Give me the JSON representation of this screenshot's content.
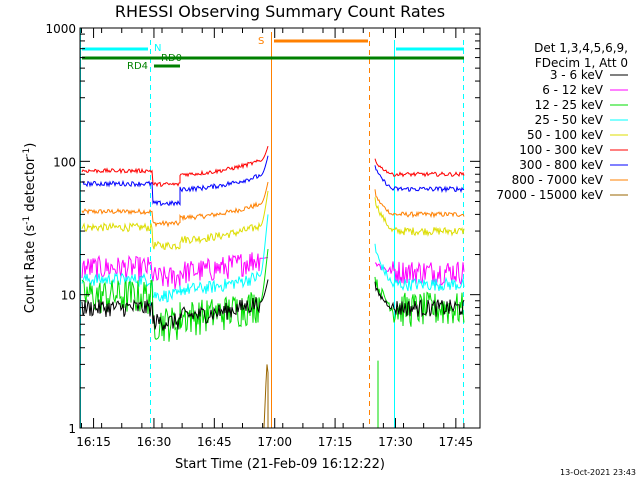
{
  "chart_data": {
    "type": "line",
    "title": "RHESSI Observing Summary Count Rates",
    "xlabel": "Start Time (21-Feb-09 16:12:22)",
    "ylabel_main": "Count Rate (s",
    "ylabel_sup1": "-1",
    "ylabel_mid": " detector",
    "ylabel_sup2": "-1",
    "ylabel_end": ")",
    "yscale": "log",
    "ylim": [
      1,
      1000
    ],
    "xlim_minutes": [
      -0.37,
      99.0
    ],
    "x_ticks": [
      {
        "minute": 3,
        "label": "16:15"
      },
      {
        "minute": 18,
        "label": "16:30"
      },
      {
        "minute": 33,
        "label": "16:45"
      },
      {
        "minute": 48,
        "label": "17:00"
      },
      {
        "minute": 63,
        "label": "17:15"
      },
      {
        "minute": 78,
        "label": "17:30"
      },
      {
        "minute": 93,
        "label": "17:45"
      }
    ],
    "y_ticks": [
      {
        "value": 1,
        "label": "1"
      },
      {
        "value": 10,
        "label": "10"
      },
      {
        "value": 100,
        "label": "100"
      },
      {
        "value": 1000,
        "label": "1000"
      }
    ],
    "legend_header": [
      "Det 1,3,4,5,6,9,",
      "FDecim 1, Att 0"
    ],
    "legend_position": "right",
    "series": [
      {
        "name": "3 - 6 keV",
        "color": "#000000",
        "values": [
          {
            "minute": 0,
            "value": 8
          },
          {
            "minute": 18,
            "value": 8
          },
          {
            "minute": 24,
            "value": 7
          },
          {
            "minute": 44,
            "value": 7
          },
          {
            "minute": 77,
            "value": 8
          },
          {
            "minute": 92,
            "value": 8
          }
        ]
      },
      {
        "name": "6 - 12 keV",
        "color": "#ff00ff",
        "values": [
          {
            "minute": 0,
            "value": 16
          },
          {
            "minute": 18,
            "value": 16
          },
          {
            "minute": 24,
            "value": 15
          },
          {
            "minute": 44,
            "value": 15
          },
          {
            "minute": 77,
            "value": 15
          },
          {
            "minute": 92,
            "value": 15
          }
        ]
      },
      {
        "name": "12 - 25 keV",
        "color": "#00dd00",
        "values": [
          {
            "minute": 0,
            "value": 10
          },
          {
            "minute": 18,
            "value": 9
          },
          {
            "minute": 24,
            "value": 7
          },
          {
            "minute": 44,
            "value": 7
          },
          {
            "minute": 77,
            "value": 8
          },
          {
            "minute": 92,
            "value": 8
          }
        ]
      },
      {
        "name": "25 - 50 keV",
        "color": "#00ffff",
        "values": [
          {
            "minute": 0,
            "value": 13
          },
          {
            "minute": 18,
            "value": 10
          },
          {
            "minute": 24,
            "value": 11
          },
          {
            "minute": 44,
            "value": 12
          },
          {
            "minute": 77,
            "value": 12
          },
          {
            "minute": 92,
            "value": 12
          }
        ]
      },
      {
        "name": "50 - 100 keV",
        "color": "#dddd00",
        "values": [
          {
            "minute": 0,
            "value": 32
          },
          {
            "minute": 18,
            "value": 31
          },
          {
            "minute": 24,
            "value": 26
          },
          {
            "minute": 44,
            "value": 27
          },
          {
            "minute": 77,
            "value": 30
          },
          {
            "minute": 92,
            "value": 30
          }
        ]
      },
      {
        "name": "100 - 300 keV",
        "color": "#ff0000",
        "values": [
          {
            "minute": 0,
            "value": 85
          },
          {
            "minute": 18,
            "value": 85
          },
          {
            "minute": 24,
            "value": 80
          },
          {
            "minute": 44,
            "value": 80
          },
          {
            "minute": 77,
            "value": 80
          },
          {
            "minute": 92,
            "value": 78
          }
        ]
      },
      {
        "name": "300 - 800 keV",
        "color": "#0000ff",
        "values": [
          {
            "minute": 0,
            "value": 68
          },
          {
            "minute": 18,
            "value": 64
          },
          {
            "minute": 24,
            "value": 62
          },
          {
            "minute": 44,
            "value": 62
          },
          {
            "minute": 77,
            "value": 62
          },
          {
            "minute": 92,
            "value": 60
          }
        ]
      },
      {
        "name": "800 - 7000 keV",
        "color": "#ff8000",
        "values": [
          {
            "minute": 0,
            "value": 42
          },
          {
            "minute": 18,
            "value": 40
          },
          {
            "minute": 24,
            "value": 38
          },
          {
            "minute": 44,
            "value": 38
          },
          {
            "minute": 77,
            "value": 40
          },
          {
            "minute": 92,
            "value": 38
          }
        ]
      },
      {
        "name": "7000 - 15000 keV",
        "color": "#996600",
        "values": [
          {
            "minute": 0,
            "value": 1
          },
          {
            "minute": 44,
            "value": 1
          },
          {
            "minute": 46,
            "value": 3
          },
          {
            "minute": 92,
            "value": 1
          }
        ]
      }
    ],
    "flags": [
      {
        "label": "N",
        "color": "#00ffff"
      },
      {
        "label": "RD0",
        "color": "#008000"
      },
      {
        "label": "RD4",
        "color": "#008000"
      },
      {
        "label": "S",
        "color": "#ff8000"
      }
    ]
  },
  "footer": {
    "timestamp": "13-Oct-2021 23:43"
  },
  "colors": {
    "axis": "#000000",
    "cyan": "#00ffff",
    "orange": "#ff8000",
    "green": "#008000"
  }
}
